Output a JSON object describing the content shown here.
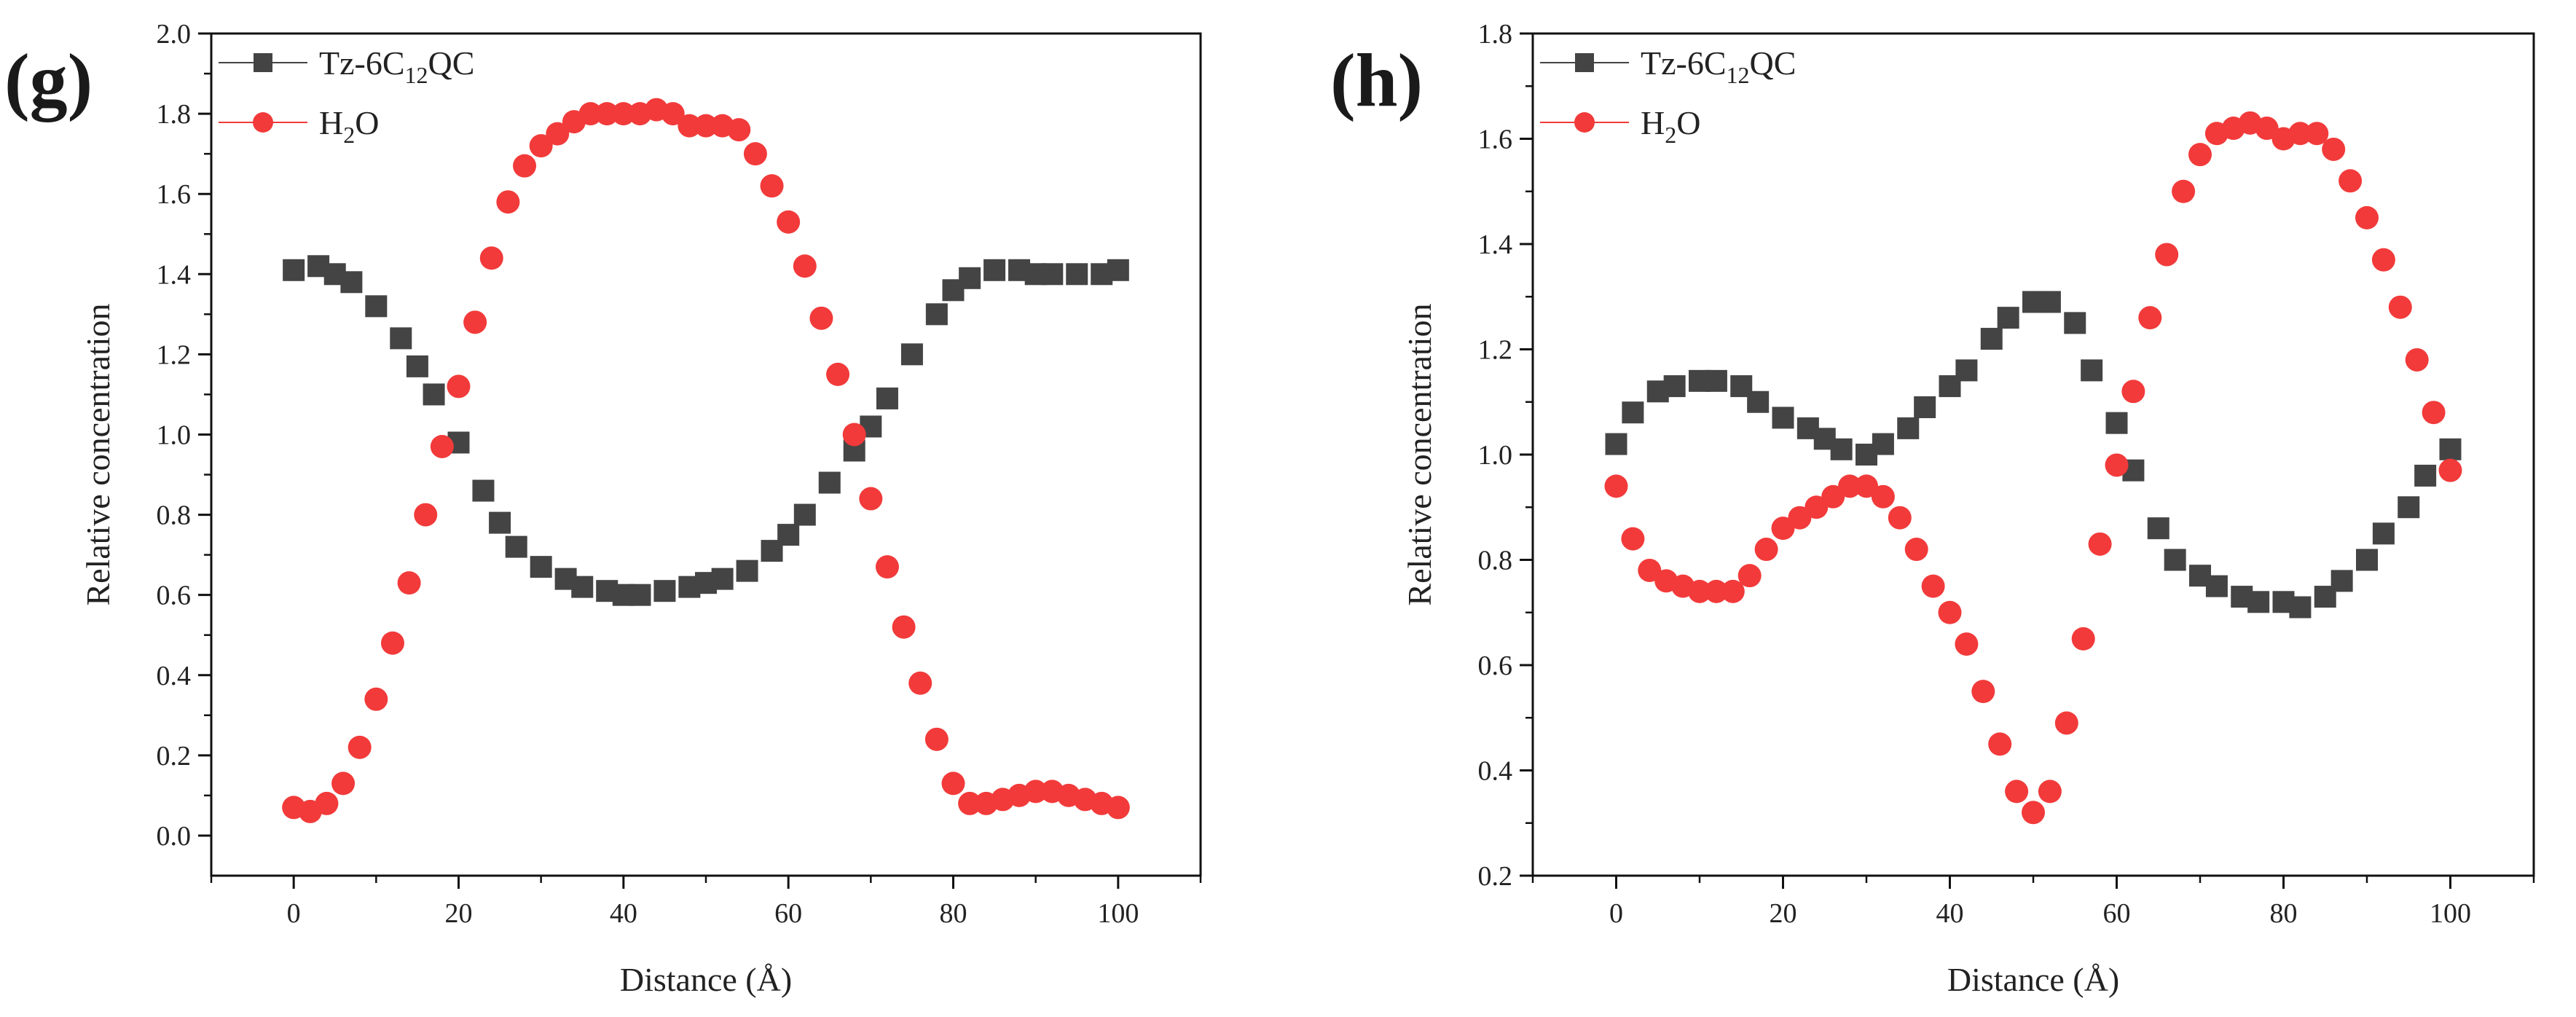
{
  "chart_data": [
    {
      "type": "scatter",
      "panel_label": "(g)",
      "xlabel": "Distance (Å)",
      "ylabel": "Relative concentration",
      "xlim": [
        -10,
        110
      ],
      "ylim": [
        -0.1,
        2.0
      ],
      "xticks": [
        0,
        20,
        40,
        60,
        80,
        100
      ],
      "yticks": [
        0.0,
        0.2,
        0.4,
        0.6,
        0.8,
        1.0,
        1.2,
        1.4,
        1.6,
        1.8,
        2.0
      ],
      "xtick_labels": [
        "0",
        "20",
        "40",
        "60",
        "80",
        "100"
      ],
      "ytick_labels": [
        "0.0",
        "0.2",
        "0.4",
        "0.6",
        "0.8",
        "1.0",
        "1.2",
        "1.4",
        "1.6",
        "1.8",
        "2.0"
      ],
      "legend_position": "top-left",
      "series": [
        {
          "name": "Tz-6C12QC",
          "legend_main": "Tz-6C",
          "legend_sub": "12",
          "legend_tail": "QC",
          "marker": "square",
          "color": "#444444",
          "x": [
            0,
            3,
            5,
            7,
            10,
            13,
            15,
            17,
            20,
            23,
            25,
            27,
            30,
            33,
            35,
            38,
            40,
            42,
            45,
            48,
            50,
            52,
            55,
            58,
            60,
            62,
            65,
            68,
            70,
            72,
            75,
            78,
            80,
            82,
            85,
            88,
            90,
            92,
            95,
            98,
            100
          ],
          "y": [
            1.41,
            1.42,
            1.4,
            1.38,
            1.32,
            1.24,
            1.17,
            1.1,
            0.98,
            0.86,
            0.78,
            0.72,
            0.67,
            0.64,
            0.62,
            0.61,
            0.6,
            0.6,
            0.61,
            0.62,
            0.63,
            0.64,
            0.66,
            0.71,
            0.75,
            0.8,
            0.88,
            0.96,
            1.02,
            1.09,
            1.2,
            1.3,
            1.36,
            1.39,
            1.41,
            1.41,
            1.4,
            1.4,
            1.4,
            1.4,
            1.41
          ]
        },
        {
          "name": "H2O",
          "legend_main": "H",
          "legend_sub": "2",
          "legend_tail": "O",
          "marker": "circle",
          "color": "#f23a3a",
          "x": [
            0,
            2,
            4,
            6,
            8,
            10,
            12,
            14,
            16,
            18,
            20,
            22,
            24,
            26,
            28,
            30,
            32,
            34,
            36,
            38,
            40,
            42,
            44,
            46,
            48,
            50,
            52,
            54,
            56,
            58,
            60,
            62,
            64,
            66,
            68,
            70,
            72,
            74,
            76,
            78,
            80,
            82,
            84,
            86,
            88,
            90,
            92,
            94,
            96,
            98,
            100
          ],
          "y": [
            0.07,
            0.06,
            0.08,
            0.13,
            0.22,
            0.34,
            0.48,
            0.63,
            0.8,
            0.97,
            1.12,
            1.28,
            1.44,
            1.58,
            1.67,
            1.72,
            1.75,
            1.78,
            1.8,
            1.8,
            1.8,
            1.8,
            1.81,
            1.8,
            1.77,
            1.77,
            1.77,
            1.76,
            1.7,
            1.62,
            1.53,
            1.42,
            1.29,
            1.15,
            1.0,
            0.84,
            0.67,
            0.52,
            0.38,
            0.24,
            0.13,
            0.08,
            0.08,
            0.09,
            0.1,
            0.11,
            0.11,
            0.1,
            0.09,
            0.08,
            0.07
          ]
        }
      ]
    },
    {
      "type": "scatter",
      "panel_label": "(h)",
      "xlabel": "Distance (Å)",
      "ylabel": "Relative concentration",
      "xlim": [
        -10,
        110
      ],
      "ylim": [
        0.2,
        1.8
      ],
      "xticks": [
        0,
        20,
        40,
        60,
        80,
        100
      ],
      "yticks": [
        0.2,
        0.4,
        0.6,
        0.8,
        1.0,
        1.2,
        1.4,
        1.6,
        1.8
      ],
      "xtick_labels": [
        "0",
        "20",
        "40",
        "60",
        "80",
        "100"
      ],
      "ytick_labels": [
        "0.2",
        "0.4",
        "0.6",
        "0.8",
        "1.0",
        "1.2",
        "1.4",
        "1.6",
        "1.8"
      ],
      "legend_position": "top-left",
      "series": [
        {
          "name": "Tz-6C12QC",
          "legend_main": "Tz-6C",
          "legend_sub": "12",
          "legend_tail": "QC",
          "marker": "square",
          "color": "#444444",
          "x": [
            0,
            2,
            5,
            7,
            10,
            12,
            15,
            17,
            20,
            23,
            25,
            27,
            30,
            32,
            35,
            37,
            40,
            42,
            45,
            47,
            50,
            52,
            55,
            57,
            60,
            62,
            65,
            67,
            70,
            72,
            75,
            77,
            80,
            82,
            85,
            87,
            90,
            92,
            95,
            97,
            100
          ],
          "y": [
            1.02,
            1.08,
            1.12,
            1.13,
            1.14,
            1.14,
            1.13,
            1.1,
            1.07,
            1.05,
            1.03,
            1.01,
            1.0,
            1.02,
            1.05,
            1.09,
            1.13,
            1.16,
            1.22,
            1.26,
            1.29,
            1.29,
            1.25,
            1.16,
            1.06,
            0.97,
            0.86,
            0.8,
            0.77,
            0.75,
            0.73,
            0.72,
            0.72,
            0.71,
            0.73,
            0.76,
            0.8,
            0.85,
            0.9,
            0.96,
            1.01
          ]
        },
        {
          "name": "H2O",
          "legend_main": "H",
          "legend_sub": "2",
          "legend_tail": "O",
          "marker": "circle",
          "color": "#f23a3a",
          "x": [
            0,
            2,
            4,
            6,
            8,
            10,
            12,
            14,
            16,
            18,
            20,
            22,
            24,
            26,
            28,
            30,
            32,
            34,
            36,
            38,
            40,
            42,
            44,
            46,
            48,
            50,
            52,
            54,
            56,
            58,
            60,
            62,
            64,
            66,
            68,
            70,
            72,
            74,
            76,
            78,
            80,
            82,
            84,
            86,
            88,
            90,
            92,
            94,
            96,
            98,
            100
          ],
          "y": [
            0.94,
            0.84,
            0.78,
            0.76,
            0.75,
            0.74,
            0.74,
            0.74,
            0.77,
            0.82,
            0.86,
            0.88,
            0.9,
            0.92,
            0.94,
            0.94,
            0.92,
            0.88,
            0.82,
            0.75,
            0.7,
            0.64,
            0.55,
            0.45,
            0.36,
            0.32,
            0.36,
            0.49,
            0.65,
            0.83,
            0.98,
            1.12,
            1.26,
            1.38,
            1.5,
            1.57,
            1.61,
            1.62,
            1.63,
            1.62,
            1.6,
            1.61,
            1.61,
            1.58,
            1.52,
            1.45,
            1.37,
            1.28,
            1.18,
            1.08,
            0.97
          ]
        }
      ]
    }
  ]
}
